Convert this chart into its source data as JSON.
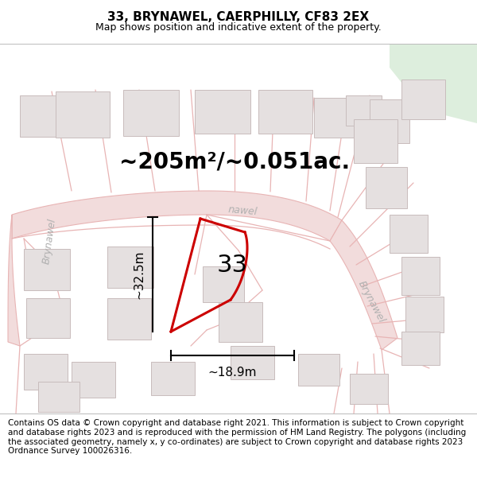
{
  "title": "33, BRYNAWEL, CAERPHILLY, CF83 2EX",
  "subtitle": "Map shows position and indicative extent of the property.",
  "footer": "Contains OS data © Crown copyright and database right 2021. This information is subject to Crown copyright and database rights 2023 and is reproduced with the permission of HM Land Registry. The polygons (including the associated geometry, namely x, y co-ordinates) are subject to Crown copyright and database rights 2023 Ordnance Survey 100026316.",
  "area_text": "~205m²/~0.051ac.",
  "dim_height": "~32.5m",
  "dim_width": "~18.9m",
  "property_number": "33",
  "map_bg": "#f7f2f2",
  "road_fill": "#f2dcdc",
  "road_edge": "#e8b4b4",
  "highlight_color": "#cc0000",
  "building_fill": "#e5e0e0",
  "building_edge": "#c8bcbc",
  "green_fill": "#ddeedd",
  "title_fontsize": 11,
  "subtitle_fontsize": 9,
  "footer_fontsize": 7.5,
  "area_fontsize": 20,
  "dim_fontsize": 11,
  "number_fontsize": 22,
  "road_label_color": "#b0b0b0",
  "road_label_size": 9
}
